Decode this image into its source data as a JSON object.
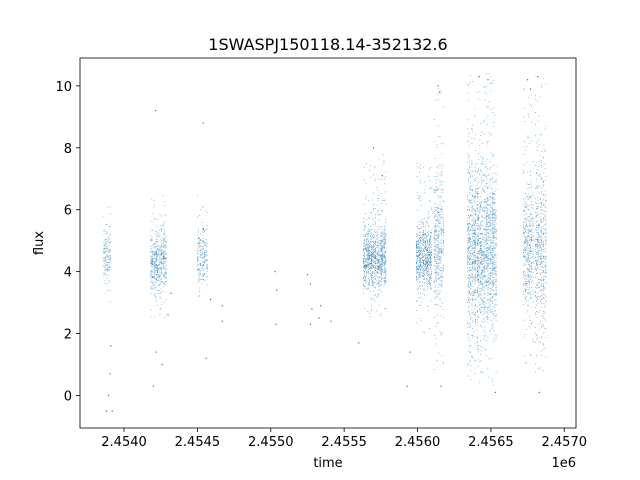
{
  "chart_data": {
    "type": "scatter",
    "title": "1SWASPJ150118.14-352132.6",
    "xlabel": "time",
    "ylabel": "flux",
    "x_offset_label": "1e6",
    "xlim": [
      2453700,
      2457080
    ],
    "ylim": [
      -1.05,
      10.9
    ],
    "xticks": [
      2.454,
      2.4545,
      2.455,
      2.4555,
      2.456,
      2.4565,
      2.457
    ],
    "xtick_labels": [
      "2.4540",
      "2.4545",
      "2.4550",
      "2.4555",
      "2.4560",
      "2.4565",
      "2.4570"
    ],
    "yticks": [
      0,
      2,
      4,
      6,
      8,
      10
    ],
    "ytick_labels": [
      "0",
      "2",
      "4",
      "6",
      "8",
      "10"
    ],
    "marker_color": "#1f77b4",
    "grid": false,
    "series": [
      {
        "name": "",
        "segments": [
          {
            "x_start": 2453860,
            "x_end": 2453910,
            "y_min": 3.0,
            "y_max": 6.2,
            "core_min": 3.5,
            "core_max": 5.5,
            "density": 2
          },
          {
            "x_start": 2454180,
            "x_end": 2454290,
            "y_min": 2.5,
            "y_max": 6.5,
            "core_min": 3.1,
            "core_max": 5.5,
            "density": 3
          },
          {
            "x_start": 2454500,
            "x_end": 2454570,
            "y_min": 3.0,
            "y_max": 6.8,
            "core_min": 3.3,
            "core_max": 5.6,
            "density": 2
          },
          {
            "x_start": 2455630,
            "x_end": 2455790,
            "y_min": 2.5,
            "y_max": 7.8,
            "core_min": 3.2,
            "core_max": 5.7,
            "density": 4
          },
          {
            "x_start": 2455990,
            "x_end": 2456100,
            "y_min": 2.0,
            "y_max": 7.5,
            "core_min": 3.2,
            "core_max": 5.8,
            "density": 4
          },
          {
            "x_start": 2456110,
            "x_end": 2456180,
            "y_min": 0.8,
            "y_max": 10.1,
            "core_min": 2.2,
            "core_max": 7.8,
            "density": 4
          },
          {
            "x_start": 2456340,
            "x_end": 2456540,
            "y_min": 0.3,
            "y_max": 10.4,
            "core_min": 1.5,
            "core_max": 8.0,
            "density": 6
          },
          {
            "x_start": 2456720,
            "x_end": 2456790,
            "y_min": 1.0,
            "y_max": 10.2,
            "core_min": 2.2,
            "core_max": 7.5,
            "density": 4
          },
          {
            "x_start": 2456800,
            "x_end": 2456880,
            "y_min": 0.6,
            "y_max": 10.3,
            "core_min": 1.5,
            "core_max": 7.8,
            "density": 4
          }
        ],
        "sparse_points": [
          [
            2453880,
            -0.5
          ],
          [
            2453895,
            0.0
          ],
          [
            2453920,
            -0.5
          ],
          [
            2453905,
            0.7
          ],
          [
            2453910,
            1.6
          ],
          [
            2454215,
            9.2
          ],
          [
            2454200,
            0.3
          ],
          [
            2454220,
            1.4
          ],
          [
            2454260,
            1.0
          ],
          [
            2454300,
            2.6
          ],
          [
            2454320,
            3.3
          ],
          [
            2454540,
            8.8
          ],
          [
            2454560,
            1.2
          ],
          [
            2454590,
            3.1
          ],
          [
            2454670,
            2.4
          ],
          [
            2454670,
            2.9
          ],
          [
            2455030,
            4.0
          ],
          [
            2455040,
            3.4
          ],
          [
            2455035,
            2.3
          ],
          [
            2455250,
            3.9
          ],
          [
            2455270,
            3.6
          ],
          [
            2455280,
            2.8
          ],
          [
            2455270,
            2.3
          ],
          [
            2455330,
            2.5
          ],
          [
            2455410,
            2.4
          ],
          [
            2455340,
            2.9
          ],
          [
            2455700,
            8.0
          ],
          [
            2455600,
            1.7
          ],
          [
            2455760,
            7.1
          ],
          [
            2455930,
            0.3
          ],
          [
            2455950,
            1.4
          ],
          [
            2456140,
            10.0
          ],
          [
            2456150,
            9.8
          ],
          [
            2456160,
            0.3
          ],
          [
            2456420,
            10.3
          ],
          [
            2456480,
            10.2
          ],
          [
            2456530,
            0.1
          ],
          [
            2456750,
            10.2
          ],
          [
            2456820,
            10.3
          ],
          [
            2456830,
            0.1
          ],
          [
            2456770,
            9.9
          ]
        ]
      }
    ]
  }
}
